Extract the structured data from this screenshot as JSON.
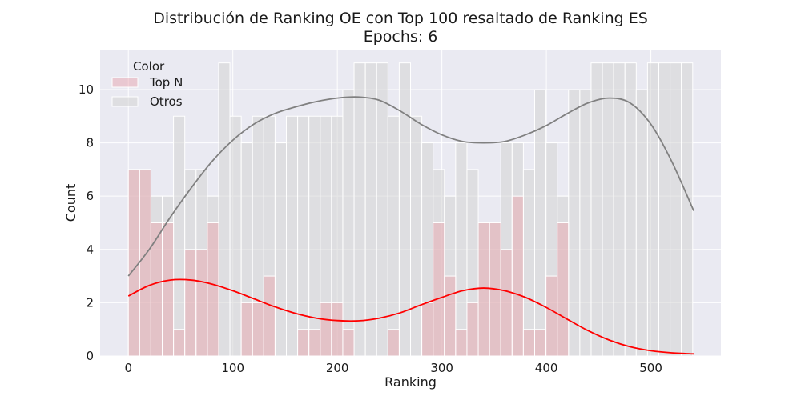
{
  "chart_data": {
    "type": "bar",
    "title": "Distribución de Ranking OE con Top 100 resaltado de Ranking ES",
    "subtitle": "Epochs: 6",
    "xlabel": "Ranking",
    "ylabel": "Count",
    "xlim": [
      -27,
      567
    ],
    "ylim": [
      0,
      11.5
    ],
    "x_ticks": [
      0,
      100,
      200,
      300,
      400,
      500
    ],
    "y_ticks": [
      0,
      2,
      4,
      6,
      8,
      10
    ],
    "grid": true,
    "bin_width": 10.8,
    "bin_start": 0,
    "legend": {
      "title": "Color",
      "placement": "top-left",
      "entries": [
        "Top N",
        "Otros"
      ]
    },
    "series": [
      {
        "name": "Top N",
        "color": "#e8a0a8",
        "values": [
          7,
          7,
          5,
          5,
          1,
          4,
          4,
          5,
          0,
          0,
          2,
          2,
          3,
          0,
          0,
          1,
          1,
          2,
          2,
          1,
          0,
          0,
          0,
          1,
          0,
          0,
          2,
          5,
          3,
          1,
          2,
          5,
          5,
          4,
          6,
          1,
          1,
          3,
          5,
          0,
          0,
          0,
          0,
          0,
          0,
          0,
          0,
          0,
          0,
          0
        ]
      },
      {
        "name": "Otros",
        "color": "#d4d4d4",
        "values": [
          7,
          7,
          6,
          6,
          9,
          7,
          7,
          6,
          11,
          9,
          8,
          9,
          9,
          8,
          9,
          9,
          9,
          9,
          9,
          10,
          11,
          11,
          11,
          9,
          11,
          9,
          8,
          7,
          6,
          8,
          7,
          5,
          5,
          8,
          8,
          7,
          10,
          8,
          6,
          10,
          10,
          11,
          11,
          11,
          11,
          10,
          11,
          11,
          11,
          11
        ]
      }
    ],
    "kde": [
      {
        "name": "Otros",
        "color": "#808080",
        "x": [
          0,
          20,
          40,
          60,
          80,
          100,
          120,
          140,
          160,
          180,
          200,
          220,
          240,
          260,
          280,
          300,
          320,
          340,
          360,
          380,
          400,
          420,
          440,
          460,
          480,
          500,
          520,
          541
        ],
        "y": [
          3.0,
          4.0,
          5.2,
          6.3,
          7.3,
          8.1,
          8.7,
          9.1,
          9.35,
          9.55,
          9.68,
          9.72,
          9.6,
          9.2,
          8.7,
          8.3,
          8.05,
          8.0,
          8.05,
          8.3,
          8.65,
          9.1,
          9.5,
          9.68,
          9.5,
          8.7,
          7.3,
          5.45
        ]
      },
      {
        "name": "Top N",
        "color": "#ff0000",
        "x": [
          0,
          20,
          40,
          60,
          80,
          100,
          120,
          140,
          160,
          180,
          200,
          220,
          240,
          260,
          280,
          300,
          320,
          340,
          360,
          380,
          400,
          420,
          440,
          460,
          480,
          500,
          520,
          541
        ],
        "y": [
          2.25,
          2.65,
          2.85,
          2.85,
          2.7,
          2.45,
          2.15,
          1.85,
          1.6,
          1.42,
          1.33,
          1.32,
          1.42,
          1.62,
          1.92,
          2.2,
          2.45,
          2.55,
          2.45,
          2.2,
          1.82,
          1.38,
          0.95,
          0.6,
          0.35,
          0.2,
          0.12,
          0.08
        ]
      }
    ]
  }
}
